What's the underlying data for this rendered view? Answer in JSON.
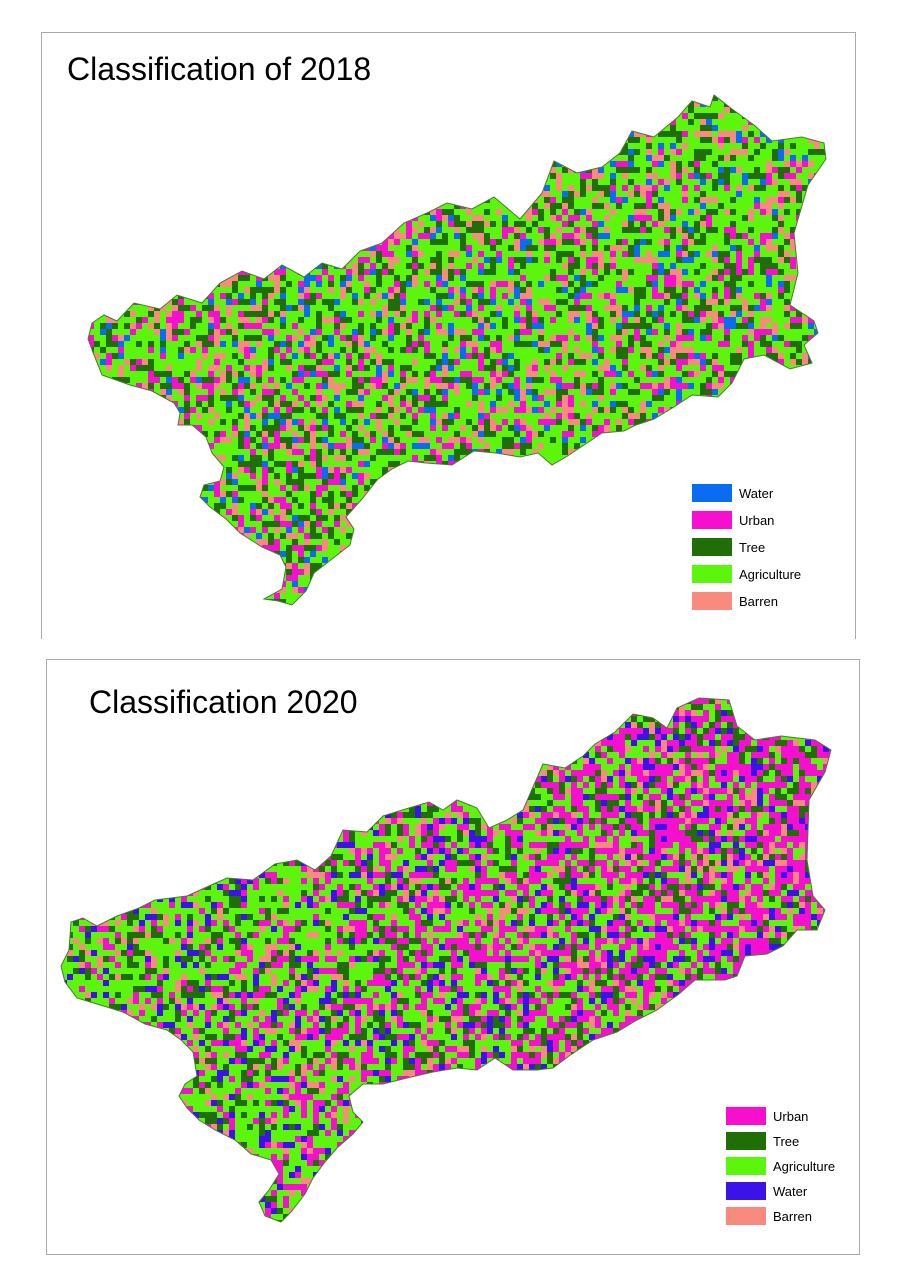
{
  "maps": [
    {
      "title": "Classification of 2018",
      "legend": [
        {
          "label": "Water",
          "color": "#0a6cf2"
        },
        {
          "label": "Urban",
          "color": "#f70fcf"
        },
        {
          "label": "Tree",
          "color": "#1f6e06"
        },
        {
          "label": "Agriculture",
          "color": "#5bf60c"
        },
        {
          "label": "Barren",
          "color": "#f98a7e"
        }
      ],
      "palette_weights": {
        "agriculture": 0.46,
        "tree": 0.2,
        "urban": 0.14,
        "barren": 0.13,
        "water": 0.07
      },
      "dominant_colors": {
        "agriculture": "#5bf60c",
        "tree": "#1f6e06",
        "urban": "#f70fcf",
        "barren": "#f98a7e",
        "water": "#0a6cf2"
      }
    },
    {
      "title": "Classification 2020",
      "legend": [
        {
          "label": "Urban",
          "color": "#f70fcf"
        },
        {
          "label": "Tree",
          "color": "#1f6e06"
        },
        {
          "label": "Agriculture",
          "color": "#5bf60c"
        },
        {
          "label": "Water",
          "color": "#3b12e8"
        },
        {
          "label": "Barren",
          "color": "#f98a7e"
        }
      ],
      "palette_weights": {
        "urban": 0.32,
        "tree": 0.2,
        "agriculture": 0.24,
        "water": 0.12,
        "barren": 0.12
      },
      "dominant_colors": {
        "agriculture": "#5bf60c",
        "tree": "#1f6e06",
        "urban": "#f70fcf",
        "barren": "#f98a7e",
        "water": "#3b12e8"
      }
    }
  ]
}
